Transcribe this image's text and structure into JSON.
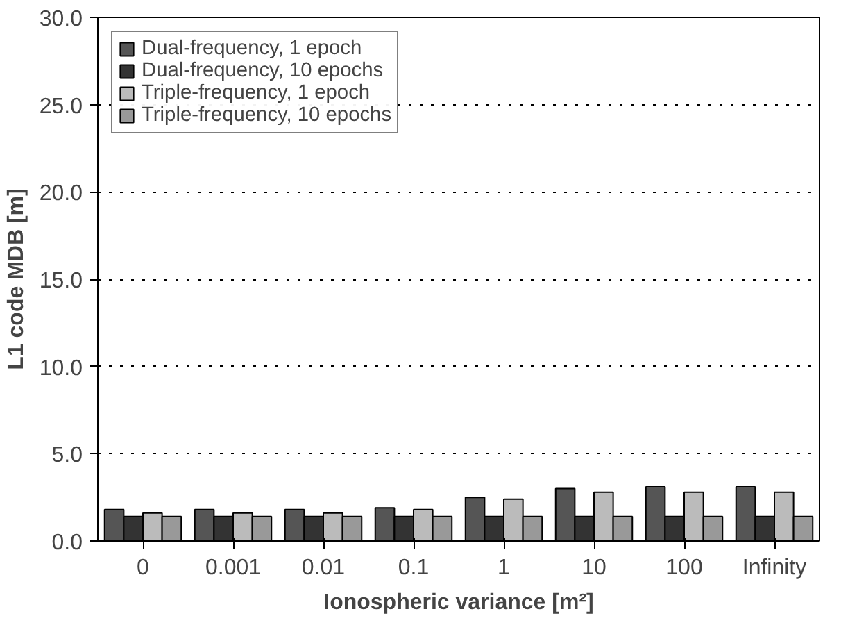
{
  "chart_data": {
    "type": "bar",
    "xlabel": "Ionospheric variance [m²]",
    "ylabel": "L1 code MDB [m]",
    "categories": [
      "0",
      "0.001",
      "0.01",
      "0.1",
      "1",
      "10",
      "100",
      "Infinity"
    ],
    "series": [
      {
        "name": "Dual-frequency, 1 epoch",
        "color": "#555555",
        "values": [
          1.8,
          1.8,
          1.8,
          1.9,
          2.5,
          3.0,
          3.1,
          3.1
        ]
      },
      {
        "name": "Dual-frequency, 10 epochs",
        "color": "#333333",
        "values": [
          1.4,
          1.4,
          1.4,
          1.4,
          1.4,
          1.4,
          1.4,
          1.4
        ]
      },
      {
        "name": "Triple-frequency, 1 epoch",
        "color": "#bbbbbb",
        "values": [
          1.6,
          1.6,
          1.6,
          1.8,
          2.4,
          2.8,
          2.8,
          2.8
        ]
      },
      {
        "name": "Triple-frequency, 10 epochs",
        "color": "#999999",
        "values": [
          1.4,
          1.4,
          1.4,
          1.4,
          1.4,
          1.4,
          1.4,
          1.4
        ]
      }
    ],
    "ylim": [
      0,
      30
    ],
    "yticks": [
      {
        "value": 0,
        "label": "0.0"
      },
      {
        "value": 5,
        "label": "5.0"
      },
      {
        "value": 10,
        "label": "10.0"
      },
      {
        "value": 15,
        "label": "15.0"
      },
      {
        "value": 20,
        "label": "20.0"
      },
      {
        "value": 25,
        "label": "25.0"
      },
      {
        "value": 30,
        "label": "30.0"
      }
    ],
    "grid": "y",
    "legend": "top left"
  }
}
